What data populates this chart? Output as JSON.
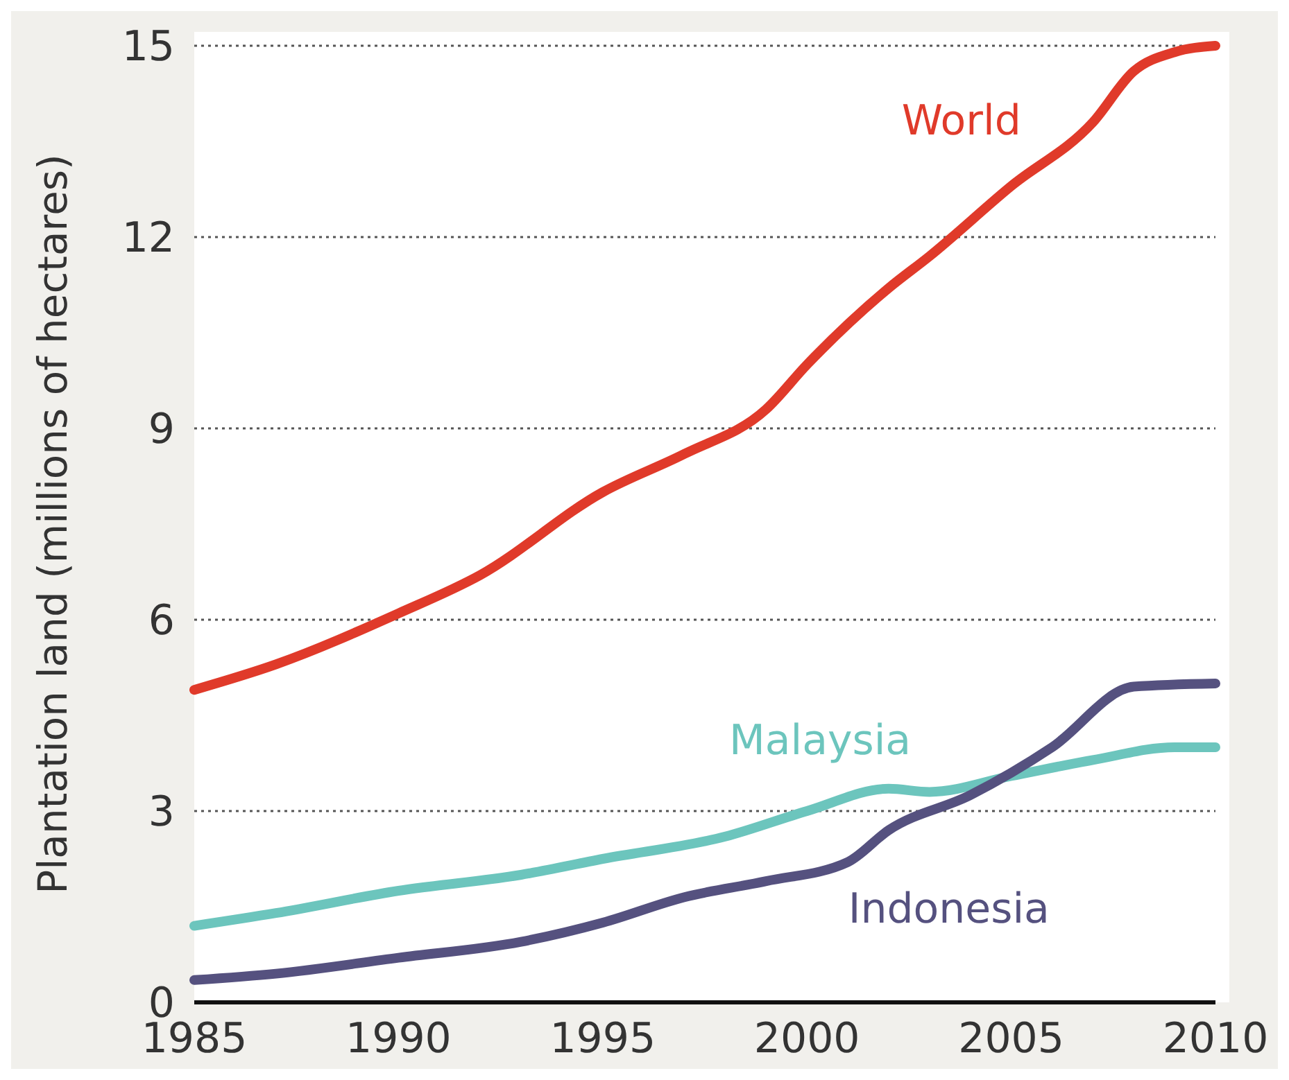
{
  "chart_data": {
    "type": "line",
    "ylabel": "Plantation land (millions of hectares)",
    "xlim": [
      1985,
      2010
    ],
    "xticks": [
      1985,
      1990,
      1995,
      2000,
      2005,
      2010
    ],
    "ylim": [
      0,
      15
    ],
    "yticks": [
      0,
      3,
      6,
      9,
      12,
      15
    ],
    "grid": "y",
    "legend": false,
    "marker": "none",
    "line_style": "solid",
    "series": [
      {
        "name": "World",
        "color": "#e03a2a",
        "x": [
          1985,
          1987,
          1990,
          1992,
          1995,
          1997,
          1999,
          2000,
          2002,
          2003,
          2005,
          2007,
          2008,
          2009,
          2010
        ],
        "values": [
          4.9,
          5.3,
          6.1,
          6.7,
          8.0,
          8.6,
          9.3,
          10.0,
          11.2,
          11.7,
          12.8,
          13.8,
          14.6,
          14.9,
          15.0
        ]
      },
      {
        "name": "Malaysia",
        "color": "#6cc5bd",
        "x": [
          1985,
          1987,
          1990,
          1993,
          1995,
          1998,
          2000,
          2002,
          2003,
          2005,
          2007,
          2009,
          2010
        ],
        "values": [
          1.2,
          1.4,
          1.75,
          2.0,
          2.25,
          2.6,
          3.0,
          3.35,
          3.3,
          3.55,
          3.8,
          4.0,
          4.0
        ]
      },
      {
        "name": "Indonesia",
        "color": "#55517f",
        "x": [
          1985,
          1987,
          1990,
          1993,
          1995,
          1997,
          1999,
          2001,
          2002,
          2004,
          2006,
          2008,
          2010
        ],
        "values": [
          0.35,
          0.45,
          0.7,
          0.95,
          1.25,
          1.65,
          1.9,
          2.2,
          2.7,
          3.25,
          4.0,
          4.95,
          5.0
        ]
      }
    ]
  }
}
